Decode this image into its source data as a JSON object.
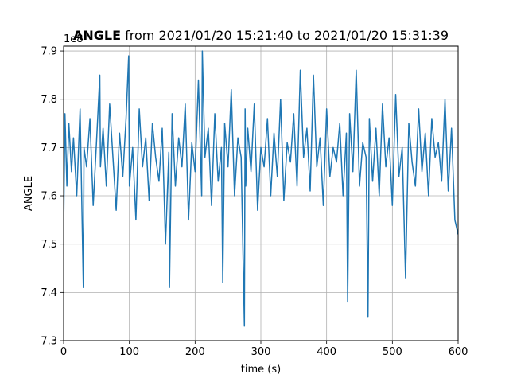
{
  "chart_data": {
    "type": "line",
    "title_bold": "ANGLE",
    "title_rest": " from 2021/01/20 15:21:40 to 2021/01/20 15:31:39",
    "xlabel": "time (s)",
    "ylabel": "ANGLE",
    "offset_label": "1e8",
    "xlim": [
      0,
      600
    ],
    "ylim": [
      7.3,
      7.91
    ],
    "xticks": [
      0,
      100,
      200,
      300,
      400,
      500,
      600
    ],
    "yticks": [
      7.3,
      7.4,
      7.5,
      7.6,
      7.7,
      7.8,
      7.9
    ],
    "xtick_labels": [
      "0",
      "100",
      "200",
      "300",
      "400",
      "500",
      "600"
    ],
    "ytick_labels": [
      "7.3",
      "7.4",
      "7.5",
      "7.6",
      "7.7",
      "7.8",
      "7.9"
    ],
    "grid": true,
    "series_color": "#1f77b4",
    "series": [
      {
        "x": [
          0,
          2,
          5,
          8,
          12,
          15,
          20,
          25,
          30,
          31,
          35,
          40,
          45,
          50,
          55,
          56,
          60,
          65,
          70,
          75,
          80,
          85,
          90,
          95,
          99,
          100,
          105,
          110,
          115,
          120,
          125,
          130,
          135,
          140,
          145,
          150,
          155,
          160,
          161,
          165,
          170,
          175,
          180,
          185,
          190,
          195,
          200,
          205,
          210,
          211,
          215,
          220,
          225,
          230,
          235,
          240,
          242,
          245,
          250,
          255,
          260,
          265,
          270,
          275,
          276,
          277,
          280,
          285,
          290,
          295,
          300,
          305,
          310,
          315,
          320,
          325,
          330,
          335,
          340,
          345,
          350,
          355,
          360,
          365,
          370,
          375,
          380,
          385,
          390,
          395,
          400,
          405,
          410,
          415,
          420,
          425,
          430,
          432,
          435,
          440,
          445,
          450,
          455,
          460,
          463,
          465,
          470,
          475,
          480,
          485,
          490,
          495,
          500,
          505,
          510,
          515,
          520,
          525,
          530,
          535,
          540,
          545,
          550,
          555,
          560,
          565,
          570,
          575,
          580,
          585,
          590,
          595,
          600
        ],
        "y": [
          7.53,
          7.77,
          7.62,
          7.75,
          7.65,
          7.72,
          7.6,
          7.78,
          7.41,
          7.7,
          7.66,
          7.76,
          7.58,
          7.71,
          7.85,
          7.66,
          7.74,
          7.62,
          7.79,
          7.68,
          7.57,
          7.73,
          7.64,
          7.76,
          7.89,
          7.62,
          7.7,
          7.55,
          7.78,
          7.66,
          7.72,
          7.59,
          7.75,
          7.68,
          7.63,
          7.74,
          7.5,
          7.69,
          7.41,
          7.77,
          7.62,
          7.72,
          7.66,
          7.79,
          7.55,
          7.71,
          7.65,
          7.84,
          7.6,
          7.9,
          7.68,
          7.74,
          7.58,
          7.77,
          7.63,
          7.7,
          7.42,
          7.75,
          7.66,
          7.82,
          7.6,
          7.72,
          7.68,
          7.33,
          7.78,
          7.62,
          7.74,
          7.65,
          7.79,
          7.57,
          7.7,
          7.66,
          7.76,
          7.6,
          7.73,
          7.64,
          7.8,
          7.59,
          7.71,
          7.67,
          7.77,
          7.62,
          7.86,
          7.68,
          7.74,
          7.61,
          7.85,
          7.66,
          7.72,
          7.58,
          7.78,
          7.64,
          7.7,
          7.67,
          7.75,
          7.6,
          7.73,
          7.38,
          7.77,
          7.65,
          7.86,
          7.62,
          7.71,
          7.68,
          7.35,
          7.76,
          7.63,
          7.74,
          7.6,
          7.79,
          7.66,
          7.72,
          7.58,
          7.81,
          7.64,
          7.7,
          7.43,
          7.75,
          7.67,
          7.62,
          7.78,
          7.65,
          7.73,
          7.6,
          7.76,
          7.68,
          7.71,
          7.63,
          7.8,
          7.61,
          7.74,
          7.55,
          7.52
        ]
      }
    ]
  }
}
